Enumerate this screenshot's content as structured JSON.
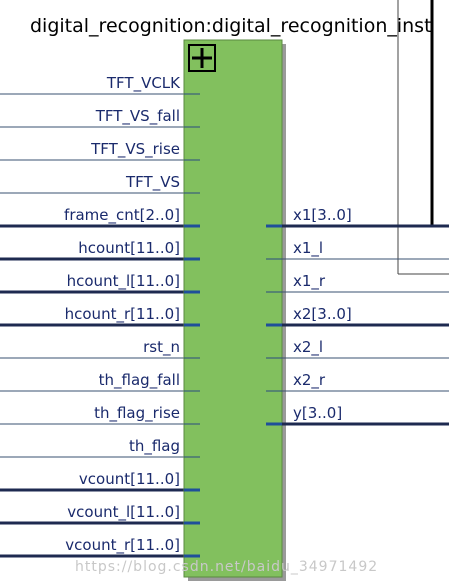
{
  "block": {
    "title": "digital_recognition:digital_recognition_inst",
    "inputs": [
      "TFT_VCLK",
      "TFT_VS_fall",
      "TFT_VS_rise",
      "TFT_VS",
      "frame_cnt[2..0]",
      "hcount[11..0]",
      "hcount_l[11..0]",
      "hcount_r[11..0]",
      "rst_n",
      "th_flag_fall",
      "th_flag_rise",
      "th_flag",
      "vcount[11..0]",
      "vcount_l[11..0]",
      "vcount_r[11..0]"
    ],
    "outputs": [
      "x1[3..0]",
      "x1_l",
      "x1_r",
      "x2[3..0]",
      "x2_l",
      "x2_r",
      "y[3..0]"
    ]
  },
  "watermark": "https://blog.csdn.net/baidu_34971492"
}
